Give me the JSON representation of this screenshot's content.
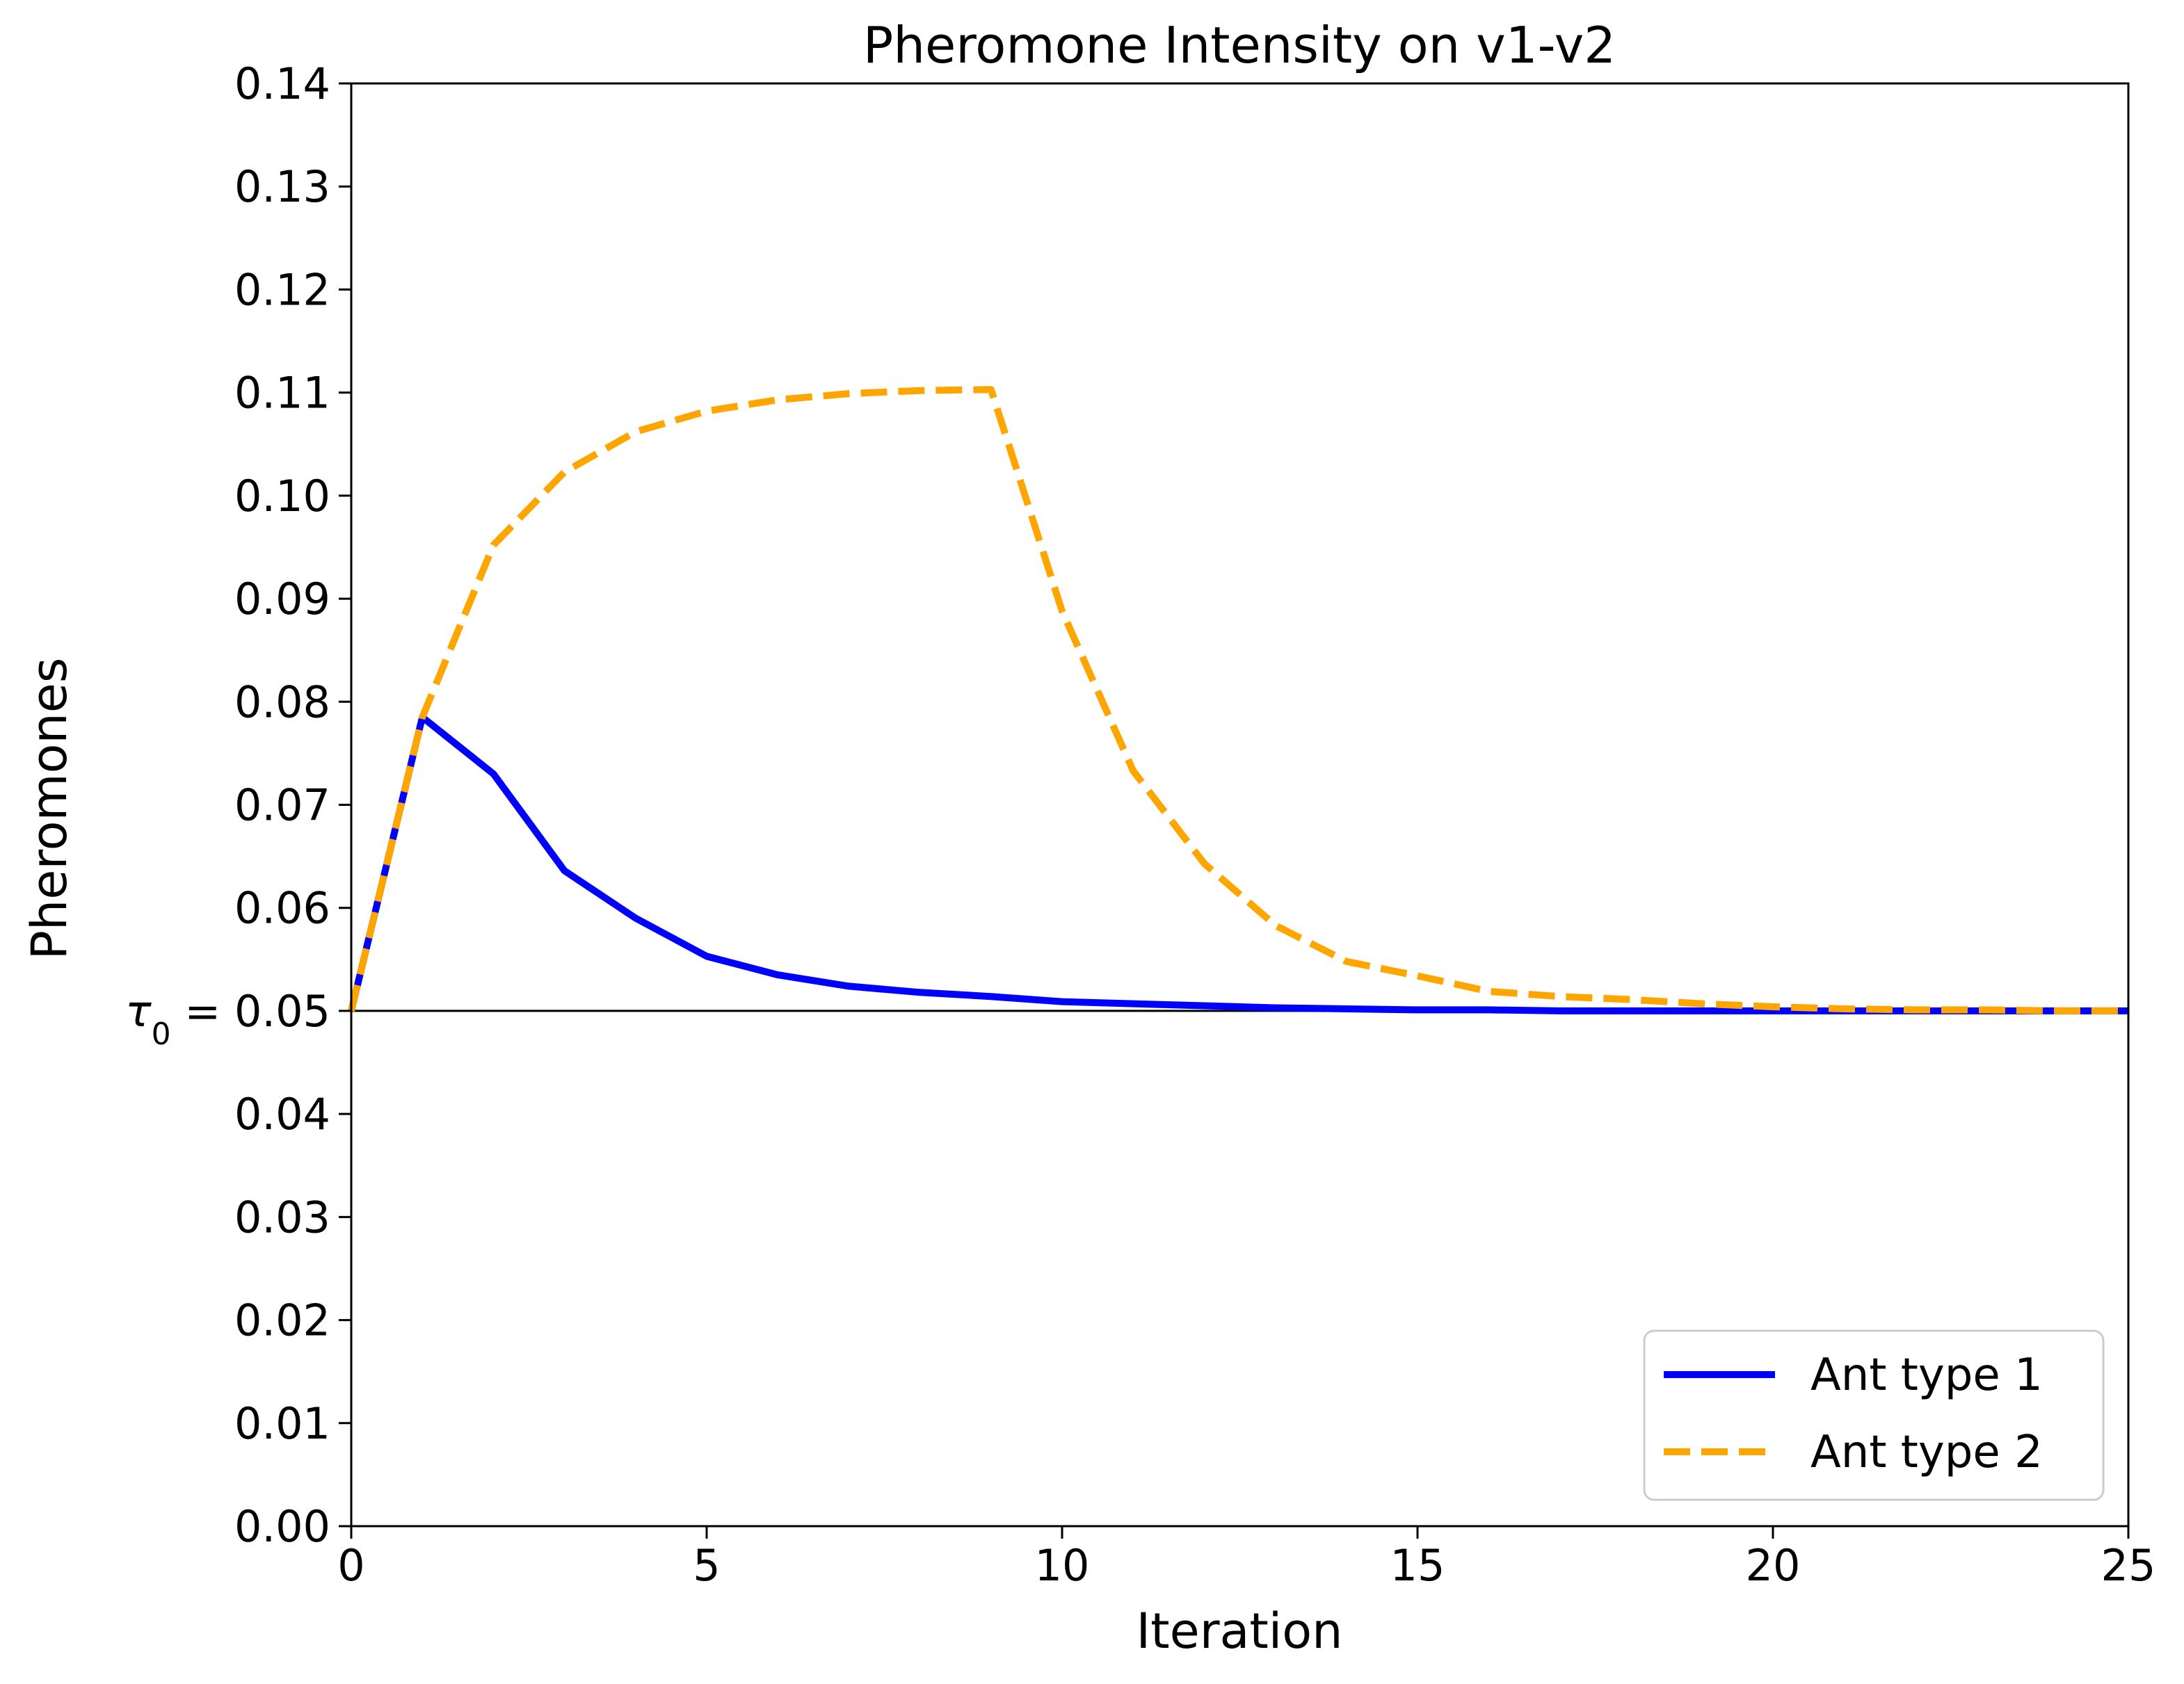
{
  "chart_data": {
    "type": "line",
    "title": "Pheromone Intensity on v1-v2",
    "xlabel": "Iteration",
    "ylabel": "Pheromones",
    "xlim": [
      0,
      25
    ],
    "ylim": [
      0,
      0.14
    ],
    "x_ticks": [
      "0",
      "5",
      "10",
      "15",
      "20",
      "25"
    ],
    "y_ticks": [
      "0.00",
      "0.01",
      "0.02",
      "0.03",
      "0.04",
      "0.05",
      "0.06",
      "0.07",
      "0.08",
      "0.09",
      "0.10",
      "0.11",
      "0.12",
      "0.13",
      "0.14"
    ],
    "reference_line": {
      "y": 0.05,
      "symbol": "τ",
      "subscript": "0",
      "value_text": " = 0.05"
    },
    "grid": false,
    "legend_position": "lower-right",
    "series": [
      {
        "name": "Ant type 1",
        "color": "#0000ff",
        "style": "solid",
        "x": [
          0,
          1,
          2,
          3,
          4,
          5,
          6,
          7,
          8,
          9,
          10,
          11,
          12,
          13,
          14,
          15,
          16,
          17,
          18,
          19,
          20,
          21,
          22,
          23,
          24,
          25
        ],
        "y": [
          0.05,
          0.0785,
          0.073,
          0.0636,
          0.059,
          0.0553,
          0.0535,
          0.0524,
          0.0518,
          0.0514,
          0.0509,
          0.0507,
          0.0505,
          0.0503,
          0.0502,
          0.0501,
          0.0501,
          0.05,
          0.05,
          0.05,
          0.05,
          0.05,
          0.05,
          0.05,
          0.05,
          0.05
        ]
      },
      {
        "name": "Ant type 2",
        "color": "#ffa500",
        "style": "dashed",
        "x": [
          0,
          1,
          2,
          3,
          4,
          5,
          6,
          7,
          8,
          9,
          10,
          11,
          12,
          13,
          14,
          15,
          16,
          17,
          18,
          19,
          20,
          21,
          22,
          23,
          24,
          25
        ],
        "y": [
          0.05,
          0.0785,
          0.0952,
          0.1023,
          0.1062,
          0.1082,
          0.1093,
          0.1099,
          0.1102,
          0.1103,
          0.0888,
          0.0733,
          0.0643,
          0.0583,
          0.0548,
          0.0534,
          0.0519,
          0.0514,
          0.0511,
          0.0507,
          0.0504,
          0.0502,
          0.0501,
          0.0501,
          0.05,
          0.05
        ]
      }
    ]
  }
}
